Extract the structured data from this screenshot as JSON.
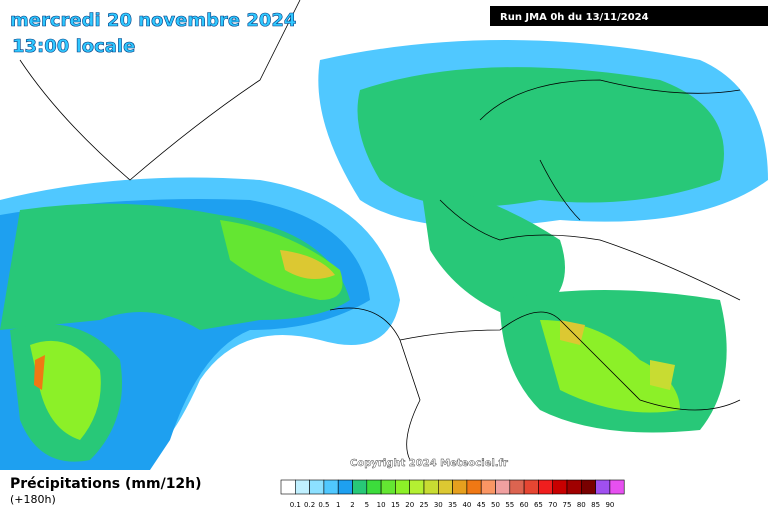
{
  "header": {
    "date": "mercredi 20 novembre 2024",
    "time": "13:00 locale",
    "run": "Run JMA 0h du 13/11/2024"
  },
  "copyright": "Copyright 2024 Meteociel.fr",
  "legend": {
    "title": "Précipitations (mm/12h)",
    "lead": "(+180h)",
    "labels": [
      0.1,
      0.2,
      0.5,
      1,
      2,
      5,
      10,
      15,
      20,
      25,
      30,
      35,
      40,
      45,
      50,
      55,
      60,
      65,
      70,
      75,
      80,
      85,
      90
    ],
    "colors": [
      "#ffffff",
      "#c0f0ff",
      "#8ce0ff",
      "#50c8ff",
      "#1ea0f0",
      "#28c878",
      "#3cdc3c",
      "#64e632",
      "#8cf028",
      "#b4f032",
      "#c8dc32",
      "#dcc832",
      "#e6a01e",
      "#f07814",
      "#fa9664",
      "#f0a0a0",
      "#dc6450",
      "#e64632",
      "#f01e1e",
      "#c80000",
      "#a00000",
      "#780000",
      "#a050f0",
      "#e650f0"
    ]
  }
}
